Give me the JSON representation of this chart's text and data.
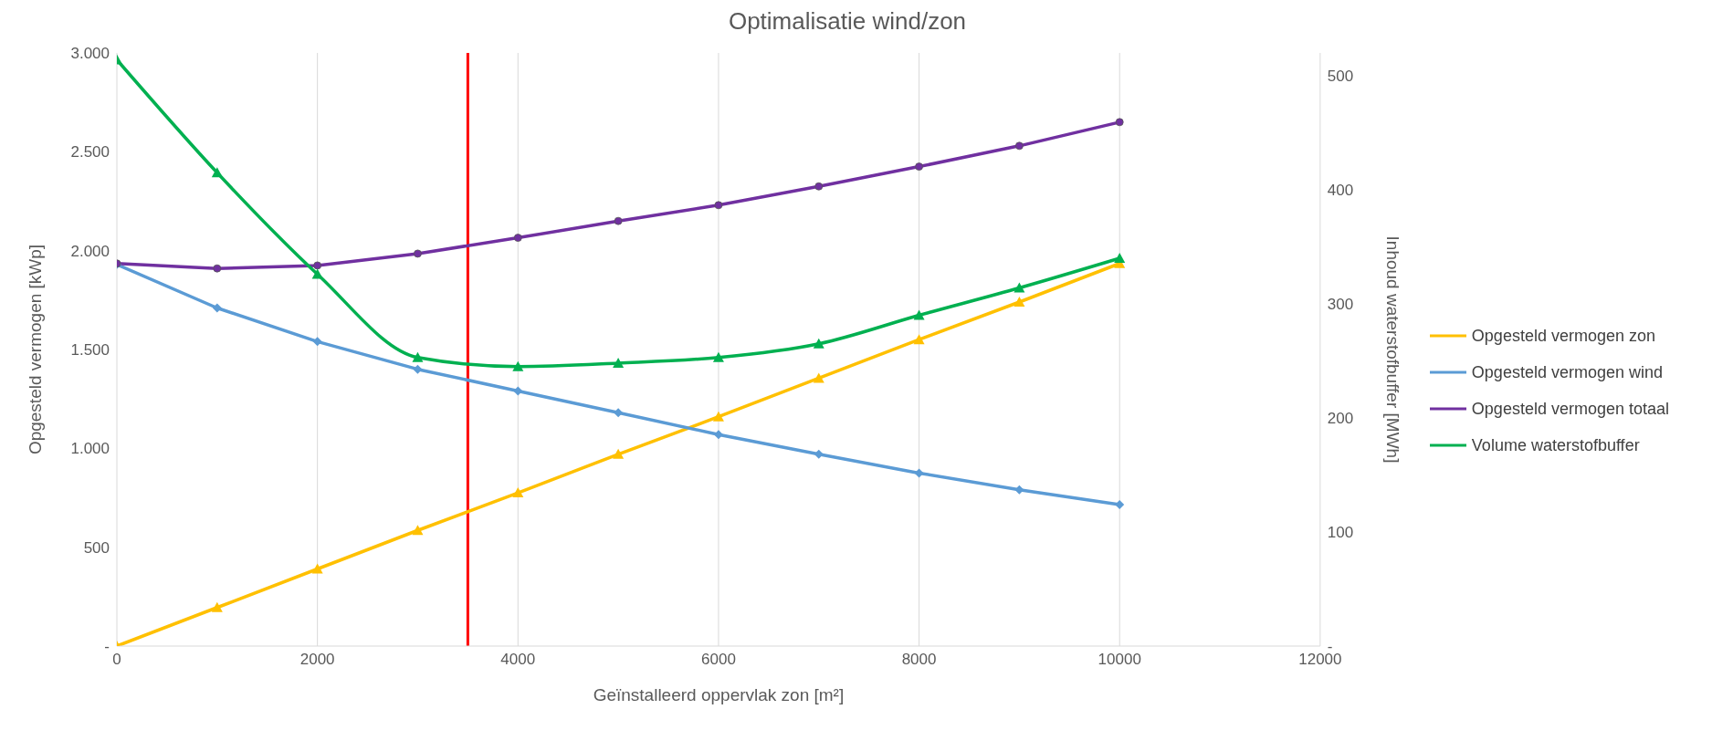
{
  "chart_data": {
    "type": "line",
    "title": "Optimalisatie wind/zon",
    "xlabel": "Geïnstalleerd oppervlak zon [m²]",
    "ylabel": "Opgesteld vermogen [kWp]",
    "y2label": "Inhoud waterstofbuffer [MWh]",
    "x": [
      0,
      1000,
      2000,
      3000,
      4000,
      5000,
      6000,
      7000,
      8000,
      9000,
      10000
    ],
    "series": [
      {
        "name": "Opgesteld vermogen zon",
        "color": "#ffc000",
        "marker": "triangle",
        "values": [
          0,
          195,
          390,
          585,
          775,
          970,
          1160,
          1355,
          1550,
          1740,
          1935
        ]
      },
      {
        "name": "Opgesteld vermogen wind",
        "color": "#5b9bd5",
        "marker": "diamond",
        "values": [
          1930,
          1710,
          1540,
          1400,
          1290,
          1180,
          1070,
          970,
          875,
          790,
          715
        ]
      },
      {
        "name": "Opgesteld vermogen totaal",
        "color": "#7030a0",
        "marker": "circle",
        "values": [
          1935,
          1910,
          1925,
          1985,
          2065,
          2150,
          2230,
          2325,
          2425,
          2530,
          2650
        ]
      },
      {
        "name": "Volume waterstofbuffer",
        "color": "#00b050",
        "marker": "triangle",
        "axis": "y2",
        "values": [
          514,
          415,
          326,
          253,
          245,
          248,
          253,
          265,
          290,
          314,
          340
        ]
      }
    ],
    "xlim": [
      0,
      12000
    ],
    "xticks": [
      0,
      2000,
      4000,
      6000,
      8000,
      10000,
      12000
    ],
    "ylim": [
      0,
      3000
    ],
    "yticks": [
      {
        "value": 0,
        "label": "-"
      },
      {
        "value": 500,
        "label": "500"
      },
      {
        "value": 1000,
        "label": "1.000"
      },
      {
        "value": 1500,
        "label": "1.500"
      },
      {
        "value": 2000,
        "label": "2.000"
      },
      {
        "value": 2500,
        "label": "2.500"
      },
      {
        "value": 3000,
        "label": "3.000"
      }
    ],
    "y2lim": [
      0,
      520
    ],
    "y2ticks": [
      {
        "value": 0,
        "label": "-"
      },
      100,
      200,
      300,
      400,
      500
    ],
    "ref_lines": [
      {
        "axis": "x",
        "value": 3500,
        "color": "#ff0000"
      }
    ],
    "grid": true,
    "legend": "right",
    "line_style": "solid"
  }
}
